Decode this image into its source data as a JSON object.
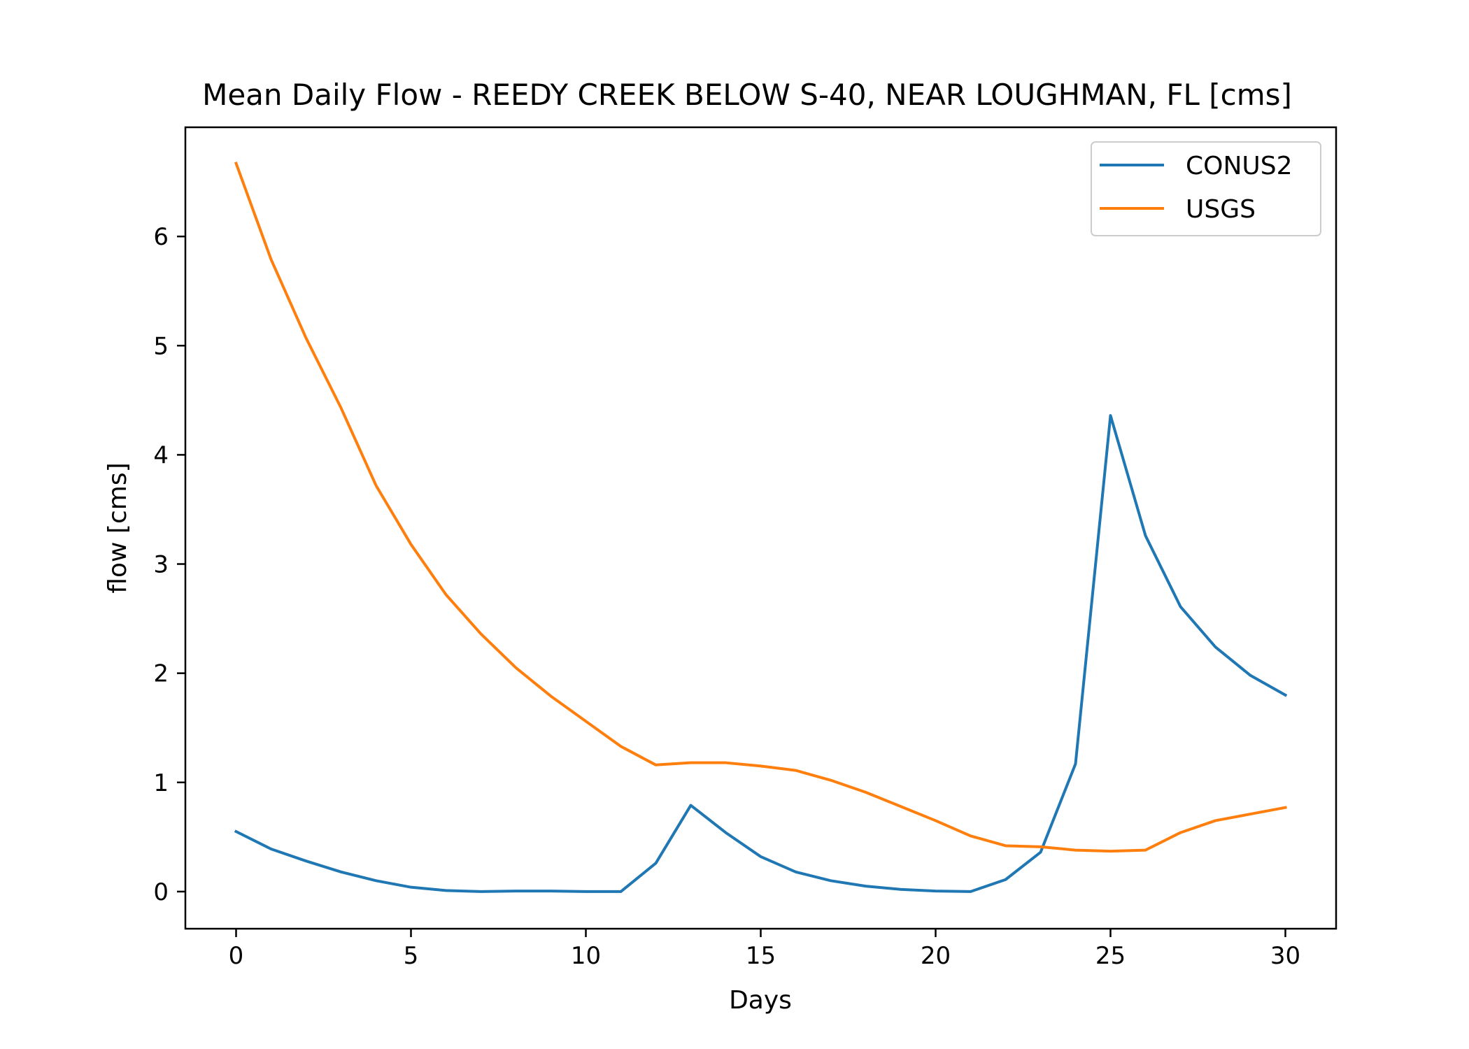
{
  "chart_data": {
    "type": "line",
    "title": "Mean Daily Flow - REEDY CREEK BELOW S-40, NEAR LOUGHMAN, FL [cms]",
    "xlabel": "Days",
    "ylabel": "flow [cms]",
    "xlim": [
      -1.45,
      31.45
    ],
    "ylim": [
      -0.34,
      7.0
    ],
    "xticks": [
      0,
      5,
      10,
      15,
      20,
      25,
      30
    ],
    "yticks": [
      0,
      1,
      2,
      3,
      4,
      5,
      6
    ],
    "grid": false,
    "legend_position": "top-right",
    "x": [
      0,
      1,
      2,
      3,
      4,
      5,
      6,
      7,
      8,
      9,
      10,
      11,
      12,
      13,
      14,
      15,
      16,
      17,
      18,
      19,
      20,
      21,
      22,
      23,
      24,
      25,
      26,
      27,
      28,
      29,
      30
    ],
    "series": [
      {
        "name": "CONUS2",
        "color": "#1f77b4",
        "values": [
          0.55,
          0.39,
          0.28,
          0.18,
          0.1,
          0.04,
          0.01,
          0.0,
          0.005,
          0.005,
          0.0,
          0.0,
          0.26,
          0.79,
          0.54,
          0.32,
          0.18,
          0.1,
          0.05,
          0.02,
          0.005,
          0.0,
          0.11,
          0.36,
          1.17,
          4.36,
          3.26,
          2.61,
          2.24,
          1.98,
          1.8
        ]
      },
      {
        "name": "USGS",
        "color": "#ff7f0e",
        "values": [
          6.67,
          5.79,
          5.07,
          4.43,
          3.72,
          3.18,
          2.72,
          2.36,
          2.05,
          1.79,
          1.56,
          1.33,
          1.16,
          1.18,
          1.18,
          1.15,
          1.11,
          1.02,
          0.91,
          0.78,
          0.65,
          0.51,
          0.42,
          0.41,
          0.38,
          0.37,
          0.38,
          0.54,
          0.65,
          0.71,
          0.77
        ]
      }
    ]
  }
}
